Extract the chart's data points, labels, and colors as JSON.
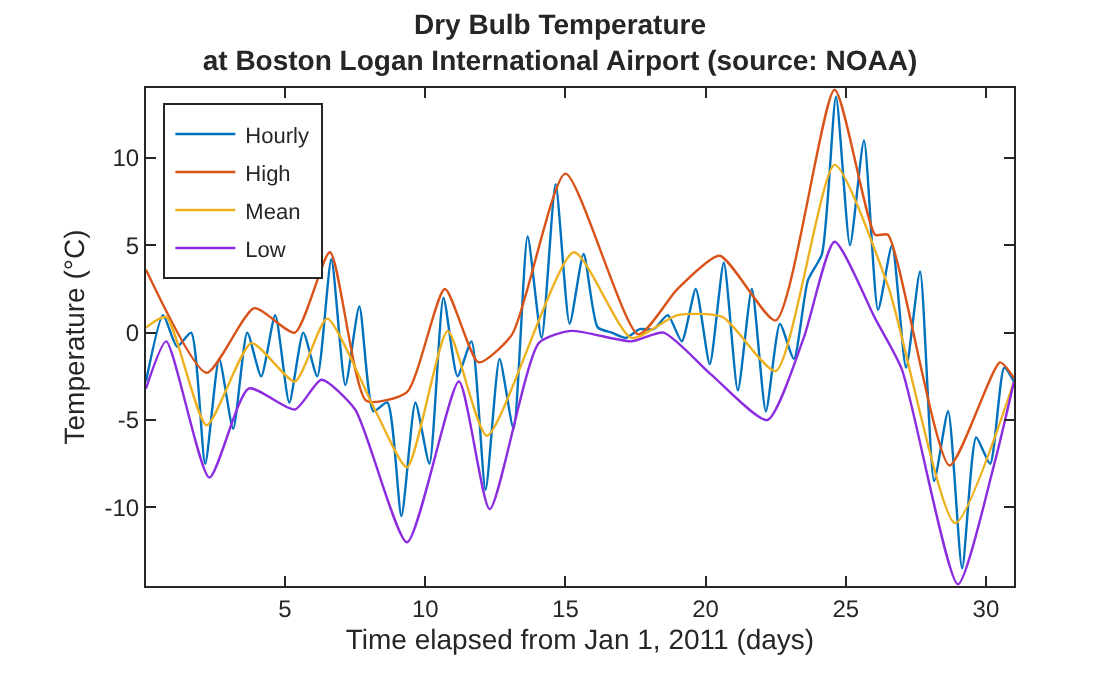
{
  "chart_data": {
    "type": "line",
    "title": "Dry Bulb Temperature\nat Boston Logan International Airport (source: NOAA)",
    "xlabel": "Time elapsed from Jan 1, 2011 (days)",
    "ylabel": "Temperature (°C)",
    "xlim": [
      0.04,
      31
    ],
    "xticks": [
      5,
      10,
      15,
      20,
      25,
      30
    ],
    "ylim": [
      -14.5,
      14
    ],
    "yticks": [
      -10,
      -5,
      0,
      5,
      10
    ],
    "legend": "top left",
    "marker": "none",
    "line_style": "solid",
    "series": [
      {
        "name": "Hourly",
        "color": "#0072bd",
        "x": [
          0.04,
          0.65,
          1.15,
          1.65,
          2.15,
          2.65,
          3.15,
          3.65,
          4.15,
          4.65,
          5.15,
          5.65,
          6.15,
          6.65,
          7.15,
          7.65,
          8.15,
          8.65,
          9.15,
          9.65,
          10.15,
          10.65,
          11.15,
          11.65,
          12.15,
          12.65,
          13.15,
          13.65,
          14.15,
          14.65,
          15.15,
          15.65,
          16.15,
          16.65,
          17.15,
          17.65,
          18.15,
          18.65,
          19.15,
          19.65,
          20.15,
          20.65,
          21.15,
          21.65,
          22.15,
          22.65,
          23.15,
          23.65,
          24.15,
          24.65,
          25.15,
          25.65,
          26.15,
          26.65,
          27.15,
          27.65,
          28.15,
          28.65,
          29.15,
          29.65,
          30.15,
          30.65,
          31
        ],
        "values": [
          -2.8,
          1.0,
          -0.8,
          0.0,
          -7.5,
          -1.5,
          -5.5,
          0.0,
          -2.5,
          1.0,
          -4.0,
          0.0,
          -2.5,
          4.2,
          -3.0,
          1.5,
          -4.5,
          -4.0,
          -10.5,
          -4.0,
          -7.5,
          2.0,
          -2.5,
          -0.5,
          -9.0,
          -1.5,
          -5.5,
          5.5,
          -0.3,
          8.5,
          0.5,
          4.5,
          0.3,
          0.0,
          -0.3,
          0.2,
          0.2,
          1.0,
          -0.5,
          2.5,
          -1.8,
          4.0,
          -3.3,
          2.5,
          -4.5,
          0.5,
          -1.5,
          3.0,
          4.5,
          13.5,
          5.0,
          11.0,
          1.3,
          5.0,
          -2.0,
          3.5,
          -8.5,
          -4.5,
          -13.5,
          -6.0,
          -7.5,
          -2.0,
          -2.8
        ]
      },
      {
        "name": "High",
        "color": "#d95319",
        "x": [
          0.04,
          2.2,
          3.9,
          5.35,
          6.6,
          7.9,
          9.35,
          10.7,
          11.9,
          13.1,
          15.0,
          17.6,
          19.0,
          20.5,
          22.5,
          24.6,
          26.05,
          26.5,
          28.7,
          30.5,
          31
        ],
        "values": [
          3.6,
          -2.3,
          1.4,
          0.0,
          4.6,
          -3.9,
          -3.4,
          2.5,
          -1.7,
          -0.1,
          9.1,
          -0.1,
          2.5,
          4.4,
          0.7,
          13.9,
          5.6,
          5.6,
          -7.6,
          -1.7,
          -2.6
        ]
      },
      {
        "name": "Mean",
        "color": "#edb120",
        "x": [
          0.04,
          0.76,
          2.2,
          3.8,
          5.35,
          6.5,
          8.2,
          9.35,
          10.8,
          12.2,
          15.3,
          17.35,
          19.0,
          20.6,
          22.5,
          24.6,
          26.5,
          28.9,
          31
        ],
        "values": [
          0.3,
          0.9,
          -5.3,
          -0.6,
          -2.8,
          0.8,
          -4.4,
          -7.7,
          0.1,
          -5.9,
          4.6,
          -0.3,
          1.0,
          0.9,
          -2.2,
          9.6,
          2.7,
          -10.9,
          -2.8
        ]
      },
      {
        "name": "Low",
        "color": "#8b2ce0",
        "x": [
          0.04,
          0.76,
          2.3,
          3.7,
          5.35,
          6.3,
          7.5,
          9.35,
          11.2,
          12.3,
          14.05,
          15.2,
          17.35,
          18.5,
          20.2,
          22.2,
          23.5,
          24.6,
          26.05,
          27.0,
          29.0,
          30.3,
          31
        ],
        "values": [
          -3.2,
          -0.5,
          -8.3,
          -3.2,
          -4.4,
          -2.7,
          -4.4,
          -12.0,
          -2.8,
          -10.1,
          -0.6,
          0.1,
          -0.5,
          0.0,
          -2.4,
          -5.0,
          -0.3,
          5.2,
          0.8,
          -2.1,
          -14.4,
          -7.5,
          -2.8
        ]
      }
    ]
  }
}
